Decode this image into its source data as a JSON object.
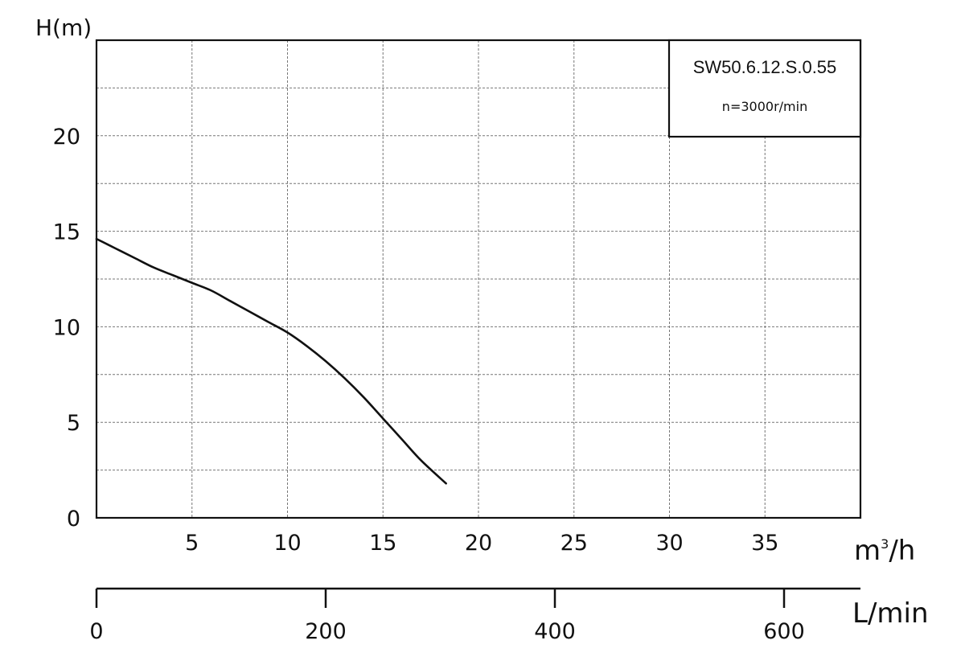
{
  "chart_data": {
    "type": "line",
    "title": "",
    "ylabel": "H(m)",
    "xlabel": "m³/h",
    "xlim": [
      0,
      40
    ],
    "ylim": [
      0,
      25
    ],
    "x_ticks": [
      5,
      10,
      15,
      20,
      25,
      30,
      35
    ],
    "y_ticks": [
      0,
      5,
      10,
      15,
      20
    ],
    "grid": true,
    "series": [
      {
        "color": "#111111",
        "x": [
          0,
          1,
          2,
          3,
          4,
          5,
          6,
          7,
          8,
          9,
          10,
          11,
          12,
          13,
          14,
          15,
          16,
          17,
          18.3
        ],
        "y": [
          14.6,
          14.1,
          13.6,
          13.1,
          12.7,
          12.3,
          11.9,
          11.35,
          10.8,
          10.25,
          9.7,
          9.0,
          8.2,
          7.3,
          6.3,
          5.2,
          4.1,
          3.0,
          1.8
        ]
      }
    ],
    "secondary_x_axis": {
      "label": "L/min",
      "ticks": [
        0,
        200,
        400,
        600
      ]
    },
    "legend_box": {
      "model": "SW50.6.12.S.0.55",
      "speed": "n=3000r/min",
      "placement": "top-right"
    }
  }
}
